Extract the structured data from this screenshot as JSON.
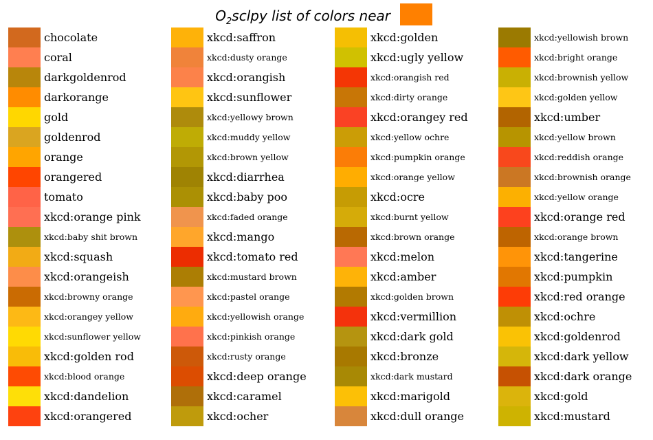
{
  "chart_data": {
    "type": "table",
    "title_prefix": "O",
    "title_sub": "2",
    "title_suffix": "sclpy list of colors near",
    "target_color": "#ff8000",
    "columns": [
      [
        {
          "name": "chocolate",
          "color": "#d2691e"
        },
        {
          "name": "coral",
          "color": "#ff7f50"
        },
        {
          "name": "darkgoldenrod",
          "color": "#b8860b"
        },
        {
          "name": "darkorange",
          "color": "#ff8c00"
        },
        {
          "name": "gold",
          "color": "#ffd700"
        },
        {
          "name": "goldenrod",
          "color": "#daa520"
        },
        {
          "name": "orange",
          "color": "#ffa500"
        },
        {
          "name": "orangered",
          "color": "#ff4500"
        },
        {
          "name": "tomato",
          "color": "#ff6347"
        },
        {
          "name": "xkcd:orange pink",
          "color": "#ff6f52"
        },
        {
          "name": "xkcd:baby shit brown",
          "color": "#ad900d"
        },
        {
          "name": "xkcd:squash",
          "color": "#f2ab15"
        },
        {
          "name": "xkcd:orangeish",
          "color": "#fd8d49"
        },
        {
          "name": "xkcd:browny orange",
          "color": "#ca6b02"
        },
        {
          "name": "xkcd:orangey yellow",
          "color": "#fdb915"
        },
        {
          "name": "xkcd:sunflower yellow",
          "color": "#ffda03"
        },
        {
          "name": "xkcd:golden rod",
          "color": "#f9bc08"
        },
        {
          "name": "xkcd:blood orange",
          "color": "#fe4b03"
        },
        {
          "name": "xkcd:dandelion",
          "color": "#fedf08"
        },
        {
          "name": "xkcd:orangered",
          "color": "#fe420f"
        }
      ],
      [
        {
          "name": "xkcd:saffron",
          "color": "#feb209"
        },
        {
          "name": "xkcd:dusty orange",
          "color": "#f0833a"
        },
        {
          "name": "xkcd:orangish",
          "color": "#fc824a"
        },
        {
          "name": "xkcd:sunflower",
          "color": "#ffc512"
        },
        {
          "name": "xkcd:yellowy brown",
          "color": "#ae8b0c"
        },
        {
          "name": "xkcd:muddy yellow",
          "color": "#bfac05"
        },
        {
          "name": "xkcd:brown yellow",
          "color": "#b29705"
        },
        {
          "name": "xkcd:diarrhea",
          "color": "#9f8303"
        },
        {
          "name": "xkcd:baby poo",
          "color": "#ab9004"
        },
        {
          "name": "xkcd:faded orange",
          "color": "#f0944d"
        },
        {
          "name": "xkcd:mango",
          "color": "#ffa62b"
        },
        {
          "name": "xkcd:tomato red",
          "color": "#ec2d01"
        },
        {
          "name": "xkcd:mustard brown",
          "color": "#ac7e04"
        },
        {
          "name": "xkcd:pastel orange",
          "color": "#ff964f"
        },
        {
          "name": "xkcd:yellowish orange",
          "color": "#ffab0f"
        },
        {
          "name": "xkcd:pinkish orange",
          "color": "#ff724c"
        },
        {
          "name": "xkcd:rusty orange",
          "color": "#cd5909"
        },
        {
          "name": "xkcd:deep orange",
          "color": "#dc4d01"
        },
        {
          "name": "xkcd:caramel",
          "color": "#af6f09"
        },
        {
          "name": "xkcd:ocher",
          "color": "#bf9b0c"
        }
      ],
      [
        {
          "name": "xkcd:golden",
          "color": "#f5bf03"
        },
        {
          "name": "xkcd:ugly yellow",
          "color": "#d0c101"
        },
        {
          "name": "xkcd:orangish red",
          "color": "#f43605"
        },
        {
          "name": "xkcd:dirty orange",
          "color": "#c87606"
        },
        {
          "name": "xkcd:orangey red",
          "color": "#fa4224"
        },
        {
          "name": "xkcd:yellow ochre",
          "color": "#cb9d06"
        },
        {
          "name": "xkcd:pumpkin orange",
          "color": "#fb7d07"
        },
        {
          "name": "xkcd:orange yellow",
          "color": "#ffad01"
        },
        {
          "name": "xkcd:ocre",
          "color": "#c69c04"
        },
        {
          "name": "xkcd:burnt yellow",
          "color": "#d5ab09"
        },
        {
          "name": "xkcd:brown orange",
          "color": "#b96902"
        },
        {
          "name": "xkcd:melon",
          "color": "#ff7855"
        },
        {
          "name": "xkcd:amber",
          "color": "#feb308"
        },
        {
          "name": "xkcd:golden brown",
          "color": "#b27a01"
        },
        {
          "name": "xkcd:vermillion",
          "color": "#f4320c"
        },
        {
          "name": "xkcd:dark gold",
          "color": "#b59410"
        },
        {
          "name": "xkcd:bronze",
          "color": "#a87900"
        },
        {
          "name": "xkcd:dark mustard",
          "color": "#a88905"
        },
        {
          "name": "xkcd:marigold",
          "color": "#fcc006"
        },
        {
          "name": "xkcd:dull orange",
          "color": "#d8863b"
        }
      ],
      [
        {
          "name": "xkcd:yellowish brown",
          "color": "#9b7a01"
        },
        {
          "name": "xkcd:bright orange",
          "color": "#ff5b00"
        },
        {
          "name": "xkcd:brownish yellow",
          "color": "#c9b003"
        },
        {
          "name": "xkcd:golden yellow",
          "color": "#fec615"
        },
        {
          "name": "xkcd:umber",
          "color": "#b26400"
        },
        {
          "name": "xkcd:yellow brown",
          "color": "#b79400"
        },
        {
          "name": "xkcd:reddish orange",
          "color": "#f8481c"
        },
        {
          "name": "xkcd:brownish orange",
          "color": "#cb7723"
        },
        {
          "name": "xkcd:yellow orange",
          "color": "#fcb001"
        },
        {
          "name": "xkcd:orange red",
          "color": "#fd411e"
        },
        {
          "name": "xkcd:orange brown",
          "color": "#be6400"
        },
        {
          "name": "xkcd:tangerine",
          "color": "#ff9408"
        },
        {
          "name": "xkcd:pumpkin",
          "color": "#e17701"
        },
        {
          "name": "xkcd:red orange",
          "color": "#fd3c06"
        },
        {
          "name": "xkcd:ochre",
          "color": "#bf9005"
        },
        {
          "name": "xkcd:goldenrod",
          "color": "#fac205"
        },
        {
          "name": "xkcd:dark yellow",
          "color": "#d5b60a"
        },
        {
          "name": "xkcd:dark orange",
          "color": "#c65102"
        },
        {
          "name": "xkcd:gold",
          "color": "#dbb40c"
        },
        {
          "name": "xkcd:mustard",
          "color": "#ceb301"
        }
      ]
    ]
  }
}
